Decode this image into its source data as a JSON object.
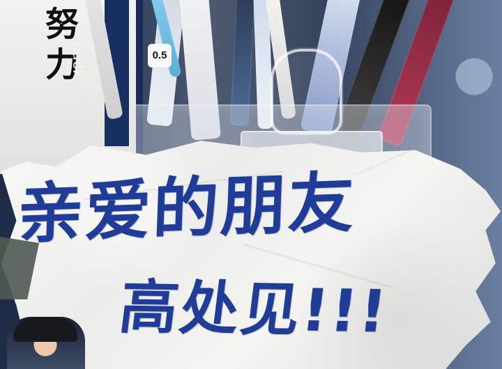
{
  "book_cover": {
    "chinese_text": [
      "努",
      "力"
    ],
    "vertical_text": "d Luck"
  },
  "pencil_label": "0.5",
  "note": {
    "line1": "亲爱的朋友",
    "line2": "高处见!!!"
  },
  "colors": {
    "ink": "#1f3d98",
    "paper": "#f2f2ef",
    "background_blue": "#243757"
  }
}
